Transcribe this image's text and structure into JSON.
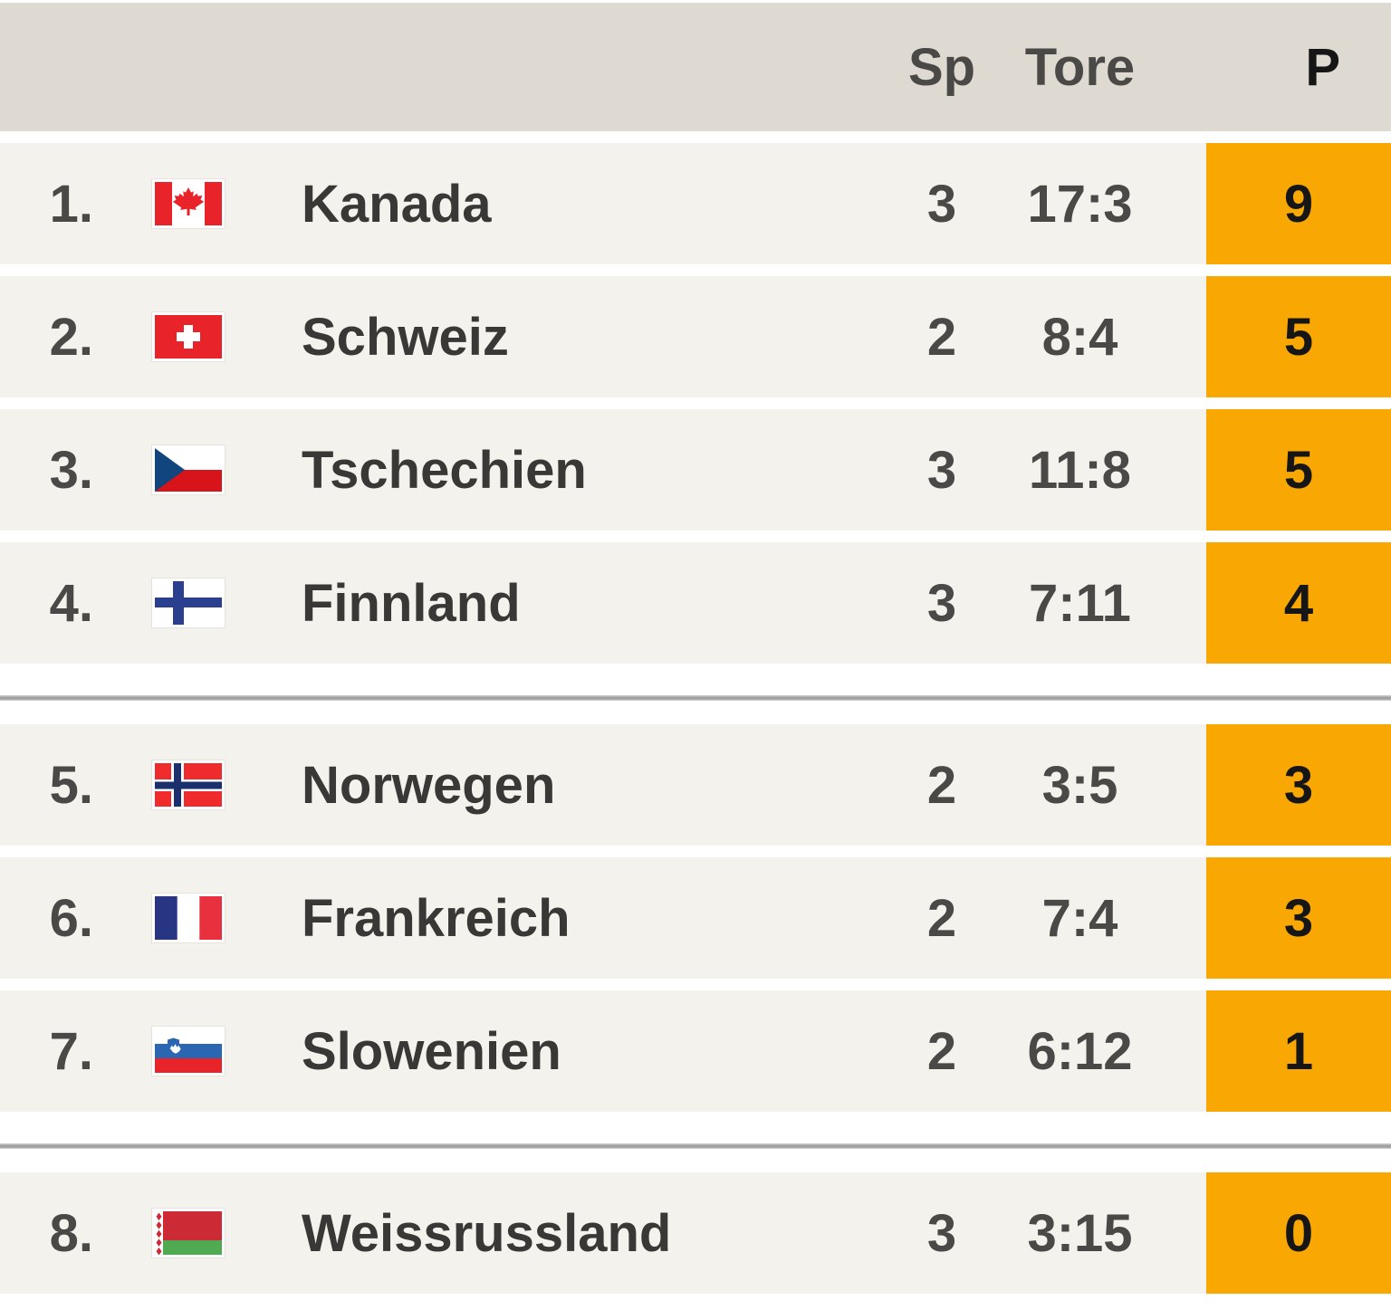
{
  "table": {
    "header": {
      "sp": "Sp",
      "tore": "Tore",
      "p": "P"
    },
    "rows": [
      {
        "rank": "1.",
        "flag": "flag-canada-icon",
        "team": "Kanada",
        "sp": "3",
        "tore": "17:3",
        "p": "9"
      },
      {
        "rank": "2.",
        "flag": "flag-switzerland-icon",
        "team": "Schweiz",
        "sp": "2",
        "tore": "8:4",
        "p": "5"
      },
      {
        "rank": "3.",
        "flag": "flag-czech-republic-icon",
        "team": "Tschechien",
        "sp": "3",
        "tore": "11:8",
        "p": "5"
      },
      {
        "rank": "4.",
        "flag": "flag-finland-icon",
        "team": "Finnland",
        "sp": "3",
        "tore": "7:11",
        "p": "4"
      },
      {
        "rank": "5.",
        "flag": "flag-norway-icon",
        "team": "Norwegen",
        "sp": "2",
        "tore": "3:5",
        "p": "3"
      },
      {
        "rank": "6.",
        "flag": "flag-france-icon",
        "team": "Frankreich",
        "sp": "2",
        "tore": "7:4",
        "p": "3"
      },
      {
        "rank": "7.",
        "flag": "flag-slovenia-icon",
        "team": "Slowenien",
        "sp": "2",
        "tore": "6:12",
        "p": "1"
      },
      {
        "rank": "8.",
        "flag": "flag-belarus-icon",
        "team": "Weissrussland",
        "sp": "3",
        "tore": "3:15",
        "p": "0"
      }
    ],
    "dividers_after_ranks": [
      "4.",
      "7."
    ]
  },
  "colors": {
    "accent_orange": "#f9a702",
    "header_bg": "#dedad2",
    "row_bg": "#f3f2ec",
    "divider_line": "#9e9e9e",
    "header_text": "#2b2a28",
    "team_text": "#393836",
    "value_text": "#4a4947",
    "points_text": "#161616"
  }
}
